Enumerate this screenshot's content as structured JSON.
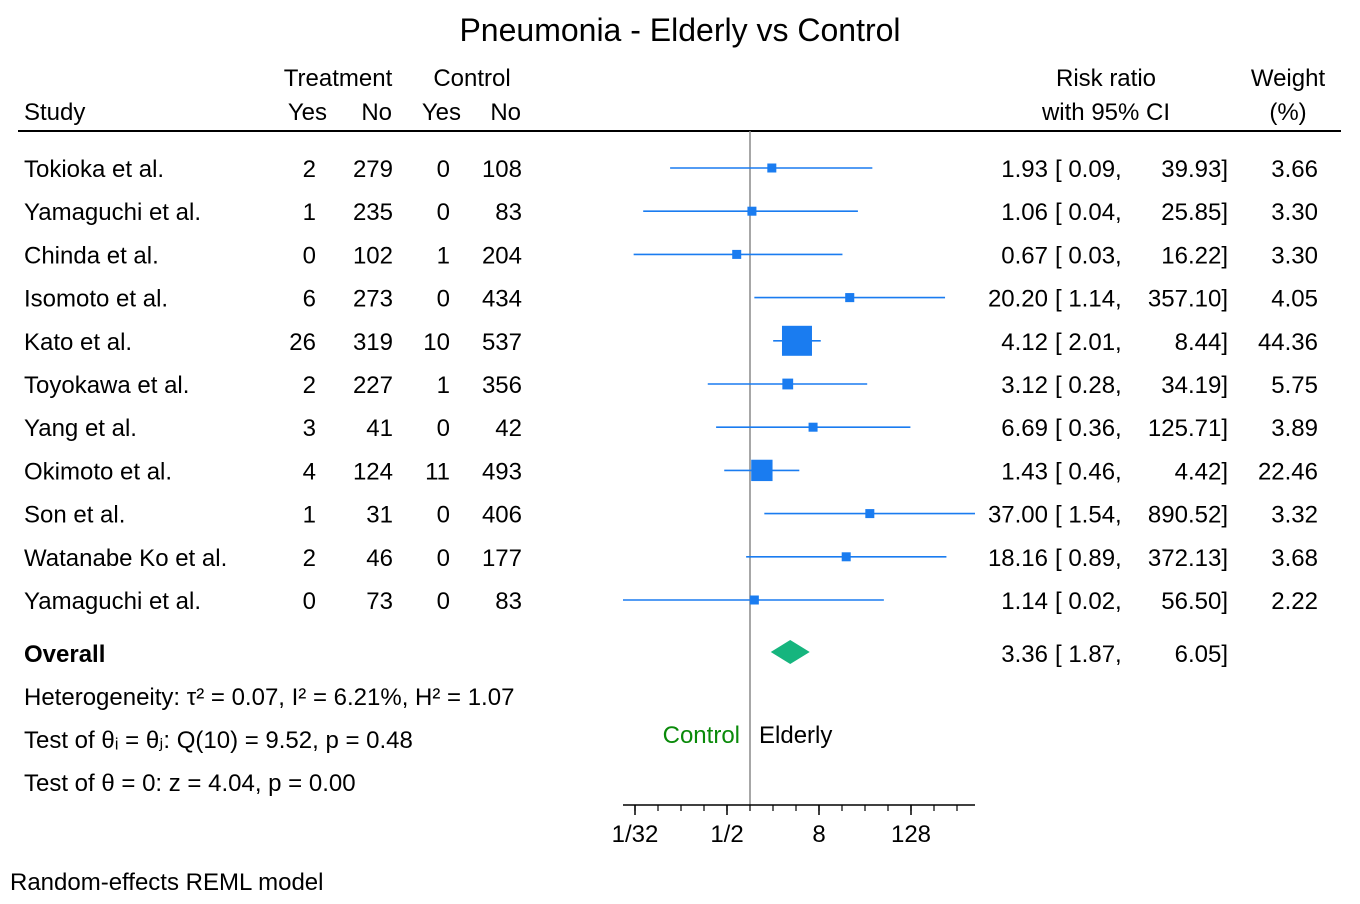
{
  "chart_data": {
    "type": "forest",
    "title": "Pneumonia - Elderly vs Control",
    "headers": {
      "study": "Study",
      "treatment": "Treatment",
      "control": "Control",
      "yes": "Yes",
      "no": "No",
      "effect_line1": "Risk ratio",
      "effect_line2": "with 95% CI",
      "weight_line1": "Weight",
      "weight_line2": "(%)"
    },
    "studies": [
      {
        "name": "Tokioka et al.",
        "t_yes": "2",
        "t_no": "279",
        "c_yes": "0",
        "c_no": "108",
        "rr": 1.93,
        "lo": 0.09,
        "hi": 39.93,
        "rr_text": "1.93",
        "lo_text": "[ 0.09,",
        "hi_text": "39.93]",
        "weight": 3.66,
        "weight_text": "3.66"
      },
      {
        "name": "Yamaguchi et al.",
        "t_yes": "1",
        "t_no": "235",
        "c_yes": "0",
        "c_no": "83",
        "rr": 1.06,
        "lo": 0.04,
        "hi": 25.85,
        "rr_text": "1.06",
        "lo_text": "[ 0.04,",
        "hi_text": "25.85]",
        "weight": 3.3,
        "weight_text": "3.30"
      },
      {
        "name": "Chinda et al.",
        "t_yes": "0",
        "t_no": "102",
        "c_yes": "1",
        "c_no": "204",
        "rr": 0.67,
        "lo": 0.03,
        "hi": 16.22,
        "rr_text": "0.67",
        "lo_text": "[ 0.03,",
        "hi_text": "16.22]",
        "weight": 3.3,
        "weight_text": "3.30"
      },
      {
        "name": "Isomoto et al.",
        "t_yes": "6",
        "t_no": "273",
        "c_yes": "0",
        "c_no": "434",
        "rr": 20.2,
        "lo": 1.14,
        "hi": 357.1,
        "rr_text": "20.20",
        "lo_text": "[ 1.14,",
        "hi_text": "357.10]",
        "weight": 4.05,
        "weight_text": "4.05"
      },
      {
        "name": "Kato et al.",
        "t_yes": "26",
        "t_no": "319",
        "c_yes": "10",
        "c_no": "537",
        "rr": 4.12,
        "lo": 2.01,
        "hi": 8.44,
        "rr_text": "4.12",
        "lo_text": "[ 2.01,",
        "hi_text": "8.44]",
        "weight": 44.36,
        "weight_text": "44.36"
      },
      {
        "name": "Toyokawa et al.",
        "t_yes": "2",
        "t_no": "227",
        "c_yes": "1",
        "c_no": "356",
        "rr": 3.12,
        "lo": 0.28,
        "hi": 34.19,
        "rr_text": "3.12",
        "lo_text": "[ 0.28,",
        "hi_text": "34.19]",
        "weight": 5.75,
        "weight_text": "5.75"
      },
      {
        "name": "Yang et al.",
        "t_yes": "3",
        "t_no": "41",
        "c_yes": "0",
        "c_no": "42",
        "rr": 6.69,
        "lo": 0.36,
        "hi": 125.71,
        "rr_text": "6.69",
        "lo_text": "[ 0.36,",
        "hi_text": "125.71]",
        "weight": 3.89,
        "weight_text": "3.89"
      },
      {
        "name": "Okimoto et al.",
        "t_yes": "4",
        "t_no": "124",
        "c_yes": "11",
        "c_no": "493",
        "rr": 1.43,
        "lo": 0.46,
        "hi": 4.42,
        "rr_text": "1.43",
        "lo_text": "[ 0.46,",
        "hi_text": "4.42]",
        "weight": 22.46,
        "weight_text": "22.46"
      },
      {
        "name": "Son et al.",
        "t_yes": "1",
        "t_no": "31",
        "c_yes": "0",
        "c_no": "406",
        "rr": 37.0,
        "lo": 1.54,
        "hi": 890.52,
        "rr_text": "37.00",
        "lo_text": "[ 1.54,",
        "hi_text": "890.52]",
        "weight": 3.32,
        "weight_text": "3.32"
      },
      {
        "name": "Watanabe Ko et al.",
        "t_yes": "2",
        "t_no": "46",
        "c_yes": "0",
        "c_no": "177",
        "rr": 18.16,
        "lo": 0.89,
        "hi": 372.13,
        "rr_text": "18.16",
        "lo_text": "[ 0.89,",
        "hi_text": "372.13]",
        "weight": 3.68,
        "weight_text": "3.68"
      },
      {
        "name": "Yamaguchi et al.",
        "t_yes": "0",
        "t_no": "73",
        "c_yes": "0",
        "c_no": "83",
        "rr": 1.14,
        "lo": 0.02,
        "hi": 56.5,
        "rr_text": "1.14",
        "lo_text": "[ 0.02,",
        "hi_text": "56.50]",
        "weight": 2.22,
        "weight_text": "2.22"
      }
    ],
    "overall": {
      "label": "Overall",
      "rr": 3.36,
      "lo": 1.87,
      "hi": 6.05,
      "rr_text": "3.36",
      "lo_text": "[ 1.87,",
      "hi_text": "6.05]"
    },
    "stats": {
      "heterogeneity": "Heterogeneity: τ² = 0.07, I² = 6.21%, H² = 1.07",
      "test_equal": "Test of θᵢ = θⱼ: Q(10) = 9.52, p = 0.48",
      "test_zero": "Test of θ = 0: z = 4.04, p = 0.00"
    },
    "axis": {
      "scale": "log2",
      "ticks": [
        {
          "value": 0.03125,
          "label": "1/32"
        },
        {
          "value": 0.5,
          "label": "1/2"
        },
        {
          "value": 8,
          "label": "8"
        },
        {
          "value": 128,
          "label": "128"
        }
      ],
      "range": [
        0.025,
        1000
      ],
      "reference": 1,
      "left_label": "Control",
      "right_label": "Elderly"
    },
    "footnote": "Random-effects REML model",
    "colors": {
      "ci": "#1a7cf0",
      "overall": "#16b57e",
      "control_label": "#0a8a0a",
      "reference": "#8a8a8a",
      "text": "#000000"
    }
  }
}
